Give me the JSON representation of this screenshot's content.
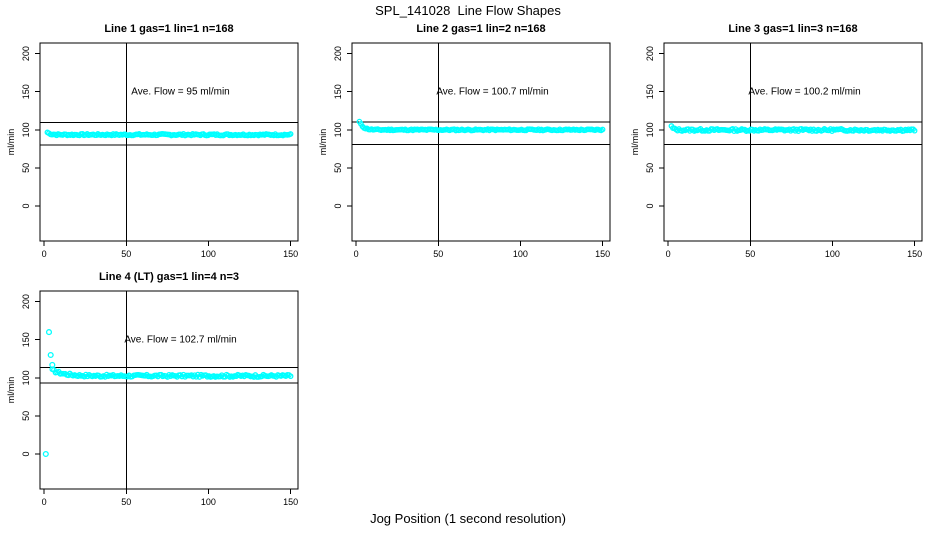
{
  "page": {
    "title": "SPL_141028  Line Flow Shapes",
    "xlabel": "Jog Position (1 second resolution)"
  },
  "colors": {
    "points": "#00ffff",
    "axis": "#000000",
    "text": "#000000",
    "background": "#ffffff"
  },
  "chart_data": [
    {
      "type": "scatter",
      "title": "Line 1 gas=1 lin=1 n=168",
      "annotation": "Ave. Flow =  95  ml/min",
      "ave_flow_ml_min": 95,
      "n": 168,
      "ylabel": "ml/min",
      "xticks": [
        0,
        50,
        100,
        150
      ],
      "yticks": [
        0,
        50,
        100,
        150,
        200
      ],
      "xlim": [
        -2.5,
        154.5
      ],
      "ylim": [
        -46,
        214
      ],
      "vline_x": 50,
      "ref_lines": [
        109.5,
        80
      ],
      "series_shape": {
        "steady_y": 93.6,
        "transient_amp": 3,
        "transient_tau": 2,
        "jitter": 1.1,
        "x_start": 2,
        "x_end": 150,
        "n_points": 160,
        "seed": 7
      },
      "outliers": []
    },
    {
      "type": "scatter",
      "title": "Line 2 gas=1 lin=2 n=168",
      "annotation": "Ave. Flow =  100.7  ml/min",
      "ave_flow_ml_min": 100.7,
      "n": 168,
      "ylabel": "ml/min",
      "xticks": [
        0,
        50,
        100,
        150
      ],
      "yticks": [
        0,
        50,
        100,
        150,
        200
      ],
      "xlim": [
        -2.5,
        154.5
      ],
      "ylim": [
        -46,
        214
      ],
      "vline_x": 50,
      "ref_lines": [
        110.5,
        81
      ],
      "series_shape": {
        "steady_y": 100,
        "transient_amp": 10.5,
        "transient_tau": 2.3,
        "jitter": 0.9,
        "x_start": 2,
        "x_end": 150,
        "n_points": 160,
        "seed": 11
      },
      "outliers": []
    },
    {
      "type": "scatter",
      "title": "Line 3 gas=1 lin=3 n=168",
      "annotation": "Ave. Flow =  100.2  ml/min",
      "ave_flow_ml_min": 100.2,
      "n": 168,
      "ylabel": "ml/min",
      "xticks": [
        0,
        50,
        100,
        150
      ],
      "yticks": [
        0,
        50,
        100,
        150,
        200
      ],
      "xlim": [
        -2.5,
        154.5
      ],
      "ylim": [
        -46,
        214
      ],
      "vline_x": 50,
      "ref_lines": [
        110.5,
        81
      ],
      "series_shape": {
        "steady_y": 99.8,
        "transient_amp": 4.5,
        "transient_tau": 1.3,
        "jitter": 1.5,
        "x_start": 2,
        "x_end": 150,
        "n_points": 160,
        "seed": 13
      },
      "outliers": []
    },
    {
      "type": "scatter",
      "title": "Line 4 (LT) gas=1 lin=4 n=3",
      "annotation": "Ave. Flow =  102.7  ml/min",
      "ave_flow_ml_min": 102.7,
      "n": 3,
      "ylabel": "ml/min",
      "xticks": [
        0,
        50,
        100,
        150
      ],
      "yticks": [
        0,
        50,
        100,
        150,
        200
      ],
      "xlim": [
        -2.5,
        154.5
      ],
      "ylim": [
        -46,
        214
      ],
      "vline_x": 50,
      "ref_lines": [
        113.5,
        93
      ],
      "series_shape": {
        "steady_y": 102.6,
        "transient_amp": 7.5,
        "transient_tau": 7,
        "jitter": 1.6,
        "x_start": 5,
        "x_end": 150,
        "n_points": 150,
        "seed": 17
      },
      "outliers": [
        [
          1,
          0
        ],
        [
          3,
          160
        ],
        [
          4,
          130
        ],
        [
          5,
          117
        ]
      ]
    }
  ]
}
